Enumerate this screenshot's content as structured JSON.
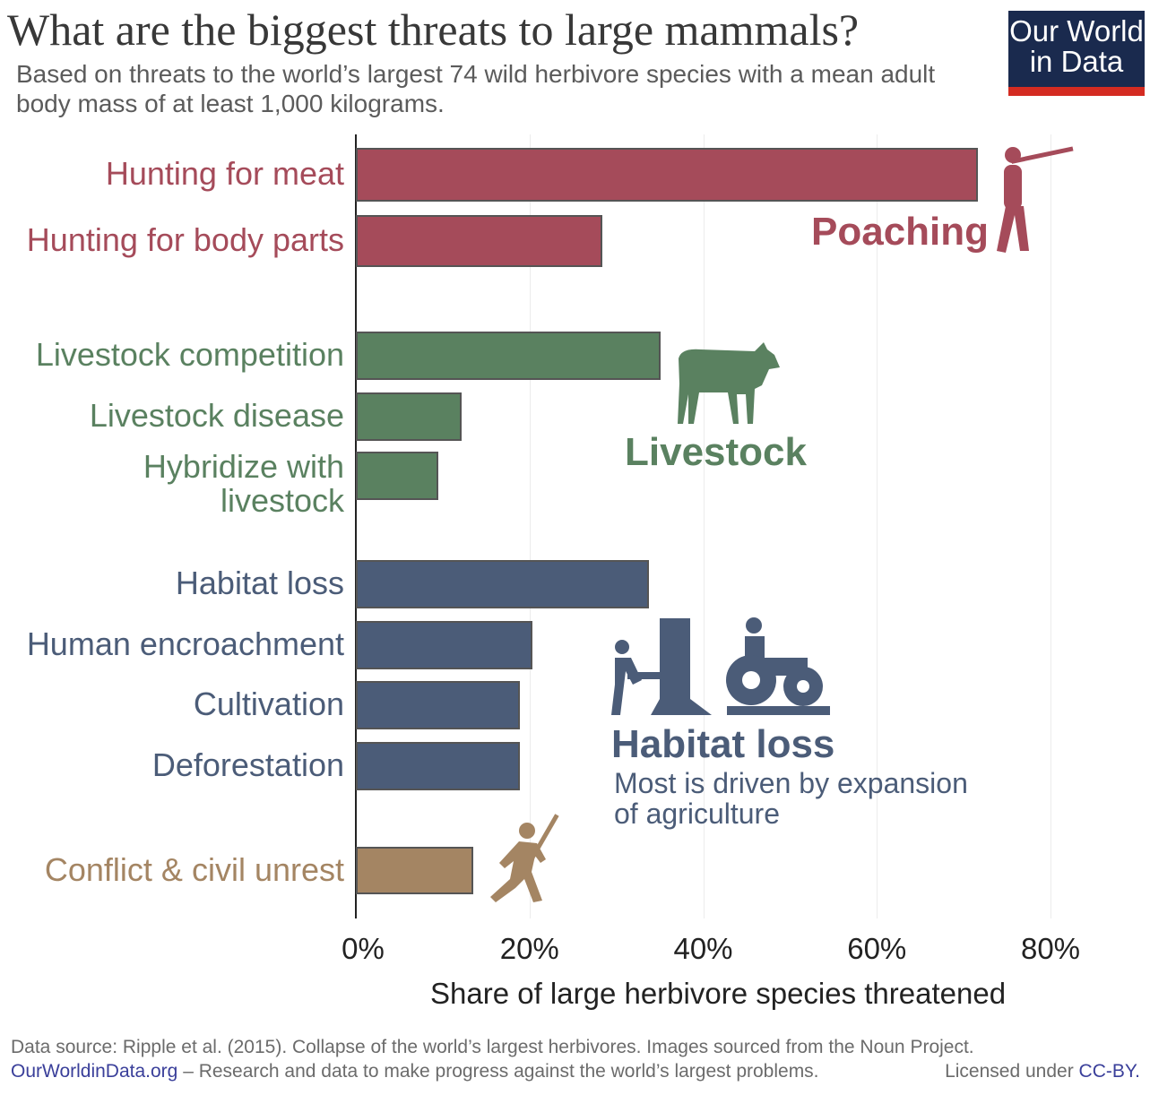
{
  "title": "What are the biggest threats to large mammals?",
  "subtitle": "Based on threats to the world’s largest 74 wild herbivore species with a mean adult body mass of at least 1,000 kilograms.",
  "logo": {
    "line1": "Our World",
    "line2": "in Data"
  },
  "chart_data": {
    "type": "bar",
    "orientation": "horizontal",
    "categories": [
      "Hunting for meat",
      "Hunting for body parts",
      "Livestock competition",
      "Livestock disease",
      "Hybridize with livestock",
      "Habitat loss",
      "Human encroachment",
      "Cultivation",
      "Deforestation",
      "Conflict & civil unrest"
    ],
    "values": [
      71.6,
      28.4,
      35.1,
      12.2,
      9.5,
      33.8,
      20.3,
      18.9,
      18.9,
      13.5
    ],
    "groups": [
      "Poaching",
      "Poaching",
      "Livestock",
      "Livestock",
      "Livestock",
      "Habitat loss",
      "Habitat loss",
      "Habitat loss",
      "Habitat loss",
      "Conflict"
    ],
    "colors": {
      "Poaching": "#a54b5a",
      "Livestock": "#5a8160",
      "Habitat loss": "#4b5c78",
      "Conflict": "#a48563"
    },
    "xlabel": "Share of large herbivore species threatened",
    "xlim": [
      0,
      80
    ],
    "xticks": [
      "0%",
      "20%",
      "40%",
      "60%",
      "80%"
    ],
    "annotations": {
      "poaching": "Poaching",
      "livestock": "Livestock",
      "habitat": "Habitat loss",
      "habitat_note": "Most is driven by expansion of agriculture"
    }
  },
  "footer": {
    "source": "Data source: Ripple et al. (2015). Collapse of the world’s largest herbivores. Images sourced from the Noun Project.",
    "site": "OurWorldinData.org",
    "tagline": " – Research and data to make progress against the world’s largest problems.",
    "license_prefix": "Licensed under ",
    "license": "CC-BY."
  }
}
